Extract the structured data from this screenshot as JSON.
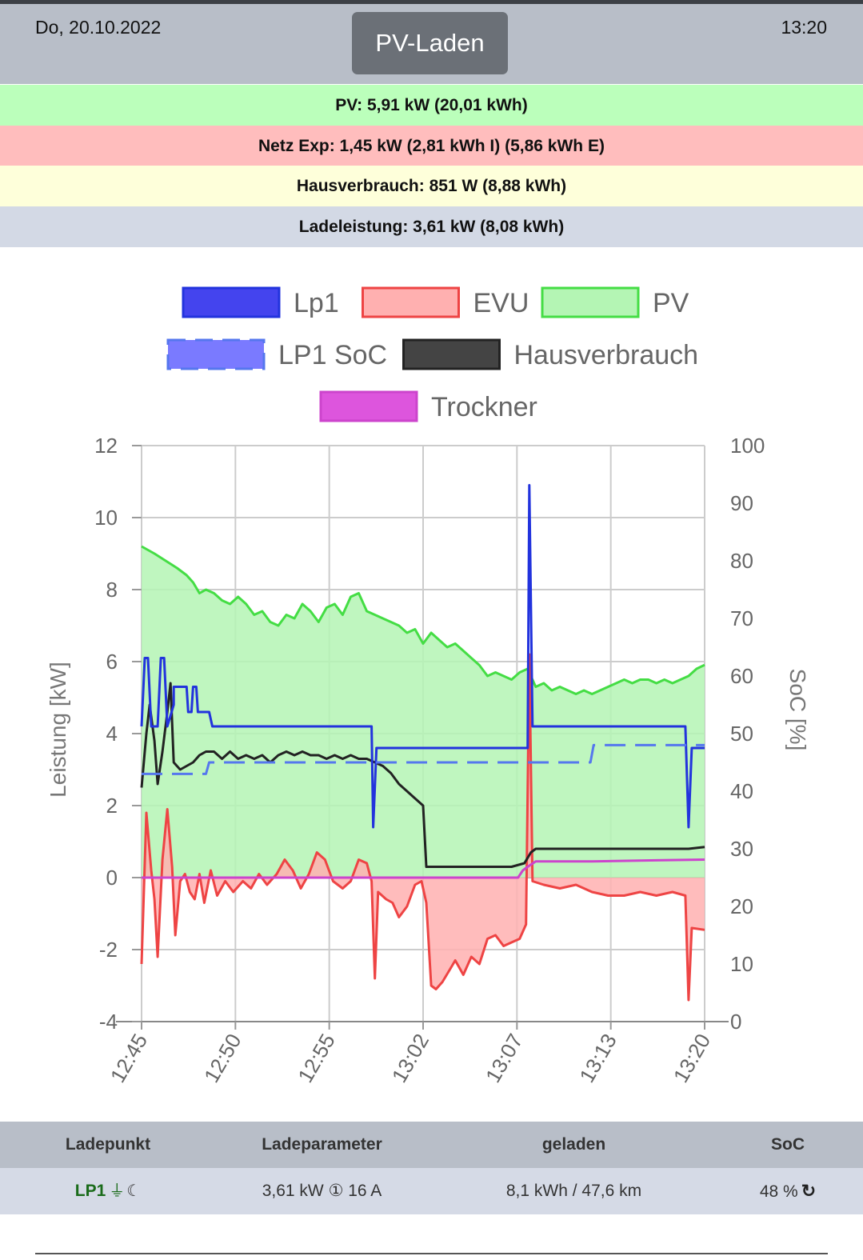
{
  "header": {
    "date": "Do, 20.10.2022",
    "time": "13:20",
    "mode_button": "PV-Laden"
  },
  "status_bands": [
    {
      "text": "PV: 5,91 kW (20,01 kWh)",
      "color": "#bbffbb"
    },
    {
      "text": "Netz Exp: 1,45 kW (2,81 kWh I) (5,86 kWh E)",
      "color": "#ffbdbd"
    },
    {
      "text": "Hausverbrauch: 851 W (8,88 kWh)",
      "color": "#feffda"
    },
    {
      "text": "Ladeleistung: 3,61 kW (8,08 kWh)",
      "color": "#d3d9e5"
    }
  ],
  "chart_data": {
    "type": "line",
    "legend_position": "top",
    "grid": true,
    "xlabel": "",
    "ylabel": "Leistung [kW]",
    "y2label": "SoC [%]",
    "ylim": [
      -4,
      12
    ],
    "y2lim": [
      0,
      100
    ],
    "yticks": [
      "12",
      "10",
      "8",
      "6",
      "4",
      "2",
      "0",
      "-2",
      "-4"
    ],
    "y2ticks": [
      "100",
      "90",
      "80",
      "70",
      "60",
      "50",
      "40",
      "30",
      "20",
      "10",
      "0"
    ],
    "xticks": [
      "12:45",
      "12:50",
      "12:55",
      "13:02",
      "13:07",
      "13:13",
      "13:20"
    ],
    "xlim": [
      0,
      35
    ],
    "series": [
      {
        "name": "Lp1",
        "color": "#2233dd",
        "fill": "#4444ee",
        "axis": "left",
        "points": [
          [
            0,
            4.2
          ],
          [
            0.2,
            6.1
          ],
          [
            0.4,
            6.1
          ],
          [
            0.6,
            4.2
          ],
          [
            1.0,
            4.2
          ],
          [
            1.2,
            6.1
          ],
          [
            1.4,
            6.1
          ],
          [
            1.6,
            4.2
          ],
          [
            2.0,
            4.8
          ],
          [
            2.0,
            5.3
          ],
          [
            2.8,
            5.3
          ],
          [
            2.9,
            4.6
          ],
          [
            3.1,
            4.6
          ],
          [
            3.2,
            5.3
          ],
          [
            3.4,
            5.3
          ],
          [
            3.5,
            4.6
          ],
          [
            4.2,
            4.6
          ],
          [
            4.4,
            4.2
          ],
          [
            14.3,
            4.2
          ],
          [
            14.4,
            1.4
          ],
          [
            14.6,
            3.6
          ],
          [
            24.0,
            3.6
          ],
          [
            24.1,
            10.9
          ],
          [
            24.3,
            4.2
          ],
          [
            33.8,
            4.2
          ],
          [
            34.0,
            1.4
          ],
          [
            34.2,
            3.6
          ],
          [
            35,
            3.6
          ]
        ]
      },
      {
        "name": "EVU",
        "color": "#ee4444",
        "fill": "#ffb0b0",
        "axis": "left",
        "fill_to_zero": true,
        "points": [
          [
            0,
            -2.4
          ],
          [
            0.3,
            1.8
          ],
          [
            0.6,
            0.2
          ],
          [
            0.8,
            -0.6
          ],
          [
            1.0,
            -2.2
          ],
          [
            1.3,
            0.5
          ],
          [
            1.6,
            1.9
          ],
          [
            1.9,
            0.3
          ],
          [
            2.1,
            -1.6
          ],
          [
            2.4,
            -0.1
          ],
          [
            2.7,
            0.1
          ],
          [
            3.0,
            -0.4
          ],
          [
            3.3,
            -0.6
          ],
          [
            3.6,
            0.1
          ],
          [
            3.9,
            -0.7
          ],
          [
            4.3,
            0.2
          ],
          [
            4.7,
            -0.5
          ],
          [
            5.2,
            -0.1
          ],
          [
            5.7,
            -0.4
          ],
          [
            6.3,
            -0.1
          ],
          [
            6.8,
            -0.3
          ],
          [
            7.3,
            0.1
          ],
          [
            7.8,
            -0.2
          ],
          [
            8.4,
            0.1
          ],
          [
            8.9,
            0.5
          ],
          [
            9.4,
            0.2
          ],
          [
            9.9,
            -0.3
          ],
          [
            10.4,
            0.1
          ],
          [
            10.9,
            0.7
          ],
          [
            11.4,
            0.5
          ],
          [
            11.9,
            -0.1
          ],
          [
            12.5,
            -0.3
          ],
          [
            13.0,
            -0.1
          ],
          [
            13.5,
            0.5
          ],
          [
            14.0,
            0.4
          ],
          [
            14.3,
            -0.1
          ],
          [
            14.5,
            -2.8
          ],
          [
            14.7,
            -0.4
          ],
          [
            15.2,
            -0.6
          ],
          [
            15.6,
            -0.7
          ],
          [
            16.0,
            -1.1
          ],
          [
            16.5,
            -0.8
          ],
          [
            17.0,
            -0.2
          ],
          [
            17.4,
            -0.1
          ],
          [
            17.7,
            -0.7
          ],
          [
            18.0,
            -3.0
          ],
          [
            18.3,
            -3.1
          ],
          [
            18.7,
            -2.9
          ],
          [
            19.1,
            -2.6
          ],
          [
            19.5,
            -2.3
          ],
          [
            20.0,
            -2.7
          ],
          [
            20.5,
            -2.2
          ],
          [
            21.0,
            -2.4
          ],
          [
            21.5,
            -1.7
          ],
          [
            22.0,
            -1.6
          ],
          [
            22.5,
            -1.9
          ],
          [
            23.0,
            -1.8
          ],
          [
            23.5,
            -1.7
          ],
          [
            23.9,
            -1.3
          ],
          [
            24.1,
            6.2
          ],
          [
            24.3,
            -0.1
          ],
          [
            25.0,
            -0.2
          ],
          [
            26.0,
            -0.3
          ],
          [
            27.0,
            -0.2
          ],
          [
            28.0,
            -0.4
          ],
          [
            29.0,
            -0.5
          ],
          [
            30.0,
            -0.5
          ],
          [
            31.0,
            -0.4
          ],
          [
            32.0,
            -0.5
          ],
          [
            33.0,
            -0.4
          ],
          [
            33.8,
            -0.5
          ],
          [
            34.0,
            -3.4
          ],
          [
            34.2,
            -1.4
          ],
          [
            35,
            -1.45
          ]
        ]
      },
      {
        "name": "PV",
        "color": "#44dd44",
        "fill": "#b4f5b4",
        "axis": "left",
        "fill_to_zero": true,
        "points": [
          [
            0,
            9.2
          ],
          [
            0.8,
            9.0
          ],
          [
            1.5,
            8.8
          ],
          [
            2.2,
            8.6
          ],
          [
            2.8,
            8.4
          ],
          [
            3.2,
            8.2
          ],
          [
            3.6,
            7.9
          ],
          [
            4.0,
            8.0
          ],
          [
            4.5,
            7.9
          ],
          [
            5.0,
            7.7
          ],
          [
            5.5,
            7.6
          ],
          [
            6.0,
            7.8
          ],
          [
            6.5,
            7.6
          ],
          [
            7.0,
            7.3
          ],
          [
            7.5,
            7.4
          ],
          [
            8.0,
            7.1
          ],
          [
            8.5,
            7.0
          ],
          [
            9.0,
            7.3
          ],
          [
            9.5,
            7.2
          ],
          [
            10.0,
            7.6
          ],
          [
            10.5,
            7.4
          ],
          [
            11.0,
            7.1
          ],
          [
            11.5,
            7.5
          ],
          [
            12.0,
            7.6
          ],
          [
            12.5,
            7.3
          ],
          [
            13.0,
            7.8
          ],
          [
            13.5,
            7.9
          ],
          [
            14.0,
            7.4
          ],
          [
            14.5,
            7.3
          ],
          [
            15.0,
            7.2
          ],
          [
            15.5,
            7.1
          ],
          [
            16.0,
            7.0
          ],
          [
            16.5,
            6.8
          ],
          [
            17.0,
            6.9
          ],
          [
            17.5,
            6.5
          ],
          [
            18.0,
            6.8
          ],
          [
            18.5,
            6.6
          ],
          [
            19.0,
            6.4
          ],
          [
            19.5,
            6.5
          ],
          [
            20.0,
            6.3
          ],
          [
            20.5,
            6.1
          ],
          [
            21.0,
            5.9
          ],
          [
            21.5,
            5.6
          ],
          [
            22.0,
            5.7
          ],
          [
            22.5,
            5.6
          ],
          [
            23.0,
            5.5
          ],
          [
            23.5,
            5.7
          ],
          [
            24.0,
            5.8
          ],
          [
            24.5,
            5.3
          ],
          [
            25.0,
            5.4
          ],
          [
            25.5,
            5.2
          ],
          [
            26.0,
            5.3
          ],
          [
            26.5,
            5.2
          ],
          [
            27.0,
            5.1
          ],
          [
            27.5,
            5.2
          ],
          [
            28.0,
            5.1
          ],
          [
            28.5,
            5.2
          ],
          [
            29.0,
            5.3
          ],
          [
            29.5,
            5.4
          ],
          [
            30.0,
            5.5
          ],
          [
            30.5,
            5.4
          ],
          [
            31.0,
            5.5
          ],
          [
            31.5,
            5.5
          ],
          [
            32.0,
            5.4
          ],
          [
            32.5,
            5.5
          ],
          [
            33.0,
            5.4
          ],
          [
            33.5,
            5.5
          ],
          [
            34.0,
            5.6
          ],
          [
            34.5,
            5.8
          ],
          [
            35,
            5.91
          ]
        ]
      },
      {
        "name": "LP1 SoC",
        "color": "#5577ee",
        "fill": "#7a7aff",
        "axis": "right",
        "dashed": true,
        "points": [
          [
            0,
            43
          ],
          [
            2.5,
            43
          ],
          [
            2.6,
            43
          ],
          [
            4.0,
            43
          ],
          [
            4.2,
            45
          ],
          [
            27.9,
            45
          ],
          [
            28.1,
            48
          ],
          [
            35,
            48
          ]
        ]
      },
      {
        "name": "Hausverbrauch",
        "color": "#222222",
        "fill": "#444444",
        "axis": "left",
        "points": [
          [
            0,
            2.5
          ],
          [
            0.3,
            4.0
          ],
          [
            0.5,
            4.8
          ],
          [
            0.8,
            3.8
          ],
          [
            1.0,
            2.6
          ],
          [
            1.3,
            3.5
          ],
          [
            1.6,
            4.6
          ],
          [
            1.8,
            5.4
          ],
          [
            2.0,
            3.2
          ],
          [
            2.4,
            3.0
          ],
          [
            2.8,
            3.1
          ],
          [
            3.2,
            3.2
          ],
          [
            3.6,
            3.4
          ],
          [
            4.0,
            3.5
          ],
          [
            4.5,
            3.5
          ],
          [
            5.0,
            3.3
          ],
          [
            5.5,
            3.5
          ],
          [
            6.0,
            3.3
          ],
          [
            6.5,
            3.4
          ],
          [
            7.0,
            3.3
          ],
          [
            7.5,
            3.4
          ],
          [
            8.0,
            3.2
          ],
          [
            8.5,
            3.4
          ],
          [
            9.0,
            3.5
          ],
          [
            9.5,
            3.4
          ],
          [
            10.0,
            3.5
          ],
          [
            10.5,
            3.4
          ],
          [
            11.0,
            3.4
          ],
          [
            11.5,
            3.3
          ],
          [
            12.0,
            3.4
          ],
          [
            12.5,
            3.3
          ],
          [
            13.0,
            3.4
          ],
          [
            13.5,
            3.3
          ],
          [
            14.0,
            3.3
          ],
          [
            14.5,
            3.2
          ],
          [
            15.0,
            3.1
          ],
          [
            15.5,
            2.9
          ],
          [
            16.0,
            2.6
          ],
          [
            16.5,
            2.4
          ],
          [
            17.0,
            2.2
          ],
          [
            17.5,
            2.0
          ],
          [
            17.7,
            0.3
          ],
          [
            18.3,
            0.3
          ],
          [
            19.0,
            0.3
          ],
          [
            20.0,
            0.3
          ],
          [
            21.0,
            0.3
          ],
          [
            22.0,
            0.3
          ],
          [
            23.0,
            0.3
          ],
          [
            23.8,
            0.4
          ],
          [
            24.2,
            0.7
          ],
          [
            24.5,
            0.8
          ],
          [
            25.0,
            0.8
          ],
          [
            26.0,
            0.8
          ],
          [
            27.0,
            0.8
          ],
          [
            28.0,
            0.8
          ],
          [
            29.0,
            0.8
          ],
          [
            30.0,
            0.8
          ],
          [
            31.0,
            0.8
          ],
          [
            32.0,
            0.8
          ],
          [
            33.0,
            0.8
          ],
          [
            34.0,
            0.8
          ],
          [
            35,
            0.85
          ]
        ]
      },
      {
        "name": "Trockner",
        "color": "#cc44cc",
        "fill": "#dd55dd",
        "axis": "left",
        "points": [
          [
            0,
            0
          ],
          [
            23.4,
            0
          ],
          [
            23.7,
            0.2
          ],
          [
            24.0,
            0.3
          ],
          [
            24.5,
            0.45
          ],
          [
            28.0,
            0.45
          ],
          [
            32.0,
            0.48
          ],
          [
            35,
            0.5
          ]
        ]
      }
    ]
  },
  "table": {
    "headers": [
      "Ladepunkt",
      "Ladeparameter",
      "geladen",
      "SoC"
    ],
    "row": {
      "name": "LP1",
      "plug_icon": "⏚",
      "moon_icon": "☾",
      "params": "3,61 kW ① 16 A",
      "charged": "8,1 kWh / 47,6 km",
      "soc": "48 %",
      "refresh_icon": "↻"
    }
  }
}
